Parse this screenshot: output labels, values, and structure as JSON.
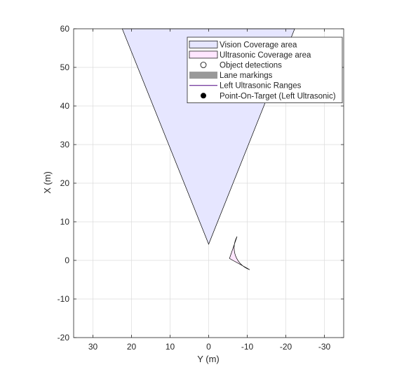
{
  "chart_data": {
    "type": "scatter",
    "title": "",
    "xlabel": "Y (m)",
    "ylabel": "X (m)",
    "xlim": [
      35,
      -35
    ],
    "ylim": [
      -20,
      60
    ],
    "x_reversed": true,
    "grid": true,
    "legend_position": "top-right",
    "x_ticks": [
      30,
      20,
      10,
      0,
      -10,
      -20,
      -30
    ],
    "x_tick_labels": [
      "30",
      "20",
      "10",
      "0",
      "-10",
      "-20",
      "-30"
    ],
    "y_ticks": [
      -20,
      -10,
      0,
      10,
      20,
      30,
      40,
      50,
      60
    ],
    "y_tick_labels": [
      "-20",
      "-10",
      "0",
      "10",
      "20",
      "30",
      "40",
      "50",
      "60"
    ],
    "vision_coverage": {
      "polygon": [
        [
          0,
          4.2
        ],
        [
          22.4,
          60
        ],
        [
          -22.3,
          60
        ]
      ],
      "fill": "#e6e6ff",
      "stroke": "#000000"
    },
    "ultrasonic_coverage": {
      "apex": [
        -5.4,
        0.5
      ],
      "radius": 6.0,
      "start_angle_deg": 109,
      "end_angle_deg": 209,
      "fill": "#ffe6ff",
      "stroke": "#000000"
    },
    "legend": [
      {
        "label": "Vision Coverage area",
        "kind": "patch",
        "fill": "#e6e6ff",
        "stroke": "#000000"
      },
      {
        "label": "Ultrasonic Coverage area",
        "kind": "patch",
        "fill": "#ffe6ff",
        "stroke": "#000000"
      },
      {
        "label": "Object detections",
        "kind": "open-circle",
        "stroke": "#000000"
      },
      {
        "label": "Lane markings",
        "kind": "thick-bar",
        "fill": "#999999"
      },
      {
        "label": "Left Ultrasonic Ranges",
        "kind": "line",
        "stroke": "#4b0082"
      },
      {
        "label": "Point-On-Target (Left Ultrasonic)",
        "kind": "filled-circle",
        "fill": "#000000"
      }
    ]
  }
}
